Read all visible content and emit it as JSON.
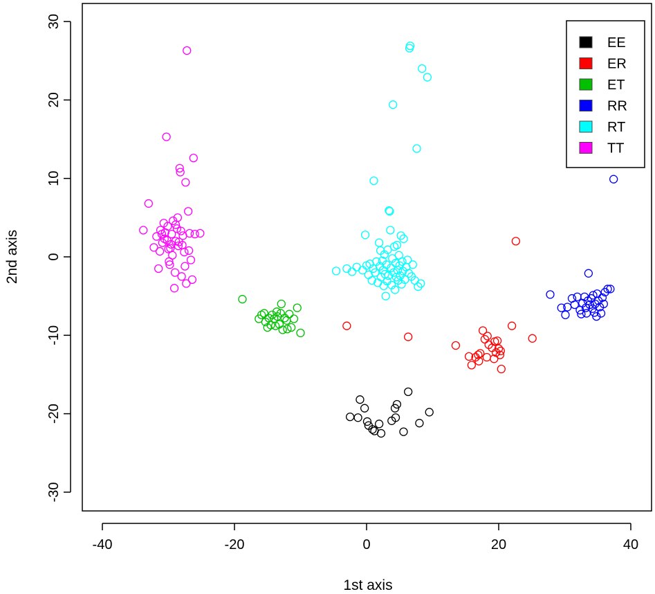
{
  "chart_data": {
    "type": "scatter",
    "xlabel": "1st axis",
    "ylabel": "2nd axis",
    "xlim": [
      -40,
      40
    ],
    "ylim": [
      -30,
      30
    ],
    "x_ticks": [
      "-40",
      "-20",
      "0",
      "20",
      "40"
    ],
    "y_ticks": [
      "-30",
      "-20",
      "-10",
      "0",
      "10",
      "20",
      "30"
    ],
    "legend_position": "top-right",
    "grid": false,
    "series": [
      {
        "name": "EE",
        "color": "#000000",
        "points": [
          [
            -1.0,
            -18.2
          ],
          [
            -0.3,
            -19.3
          ],
          [
            -2.5,
            -20.4
          ],
          [
            -1.3,
            -20.5
          ],
          [
            0.1,
            -21.0
          ],
          [
            0.3,
            -21.5
          ],
          [
            0.9,
            -22.0
          ],
          [
            1.2,
            -22.2
          ],
          [
            1.9,
            -21.3
          ],
          [
            2.2,
            -22.5
          ],
          [
            3.8,
            -20.9
          ],
          [
            4.4,
            -20.5
          ],
          [
            4.3,
            -19.3
          ],
          [
            4.6,
            -18.8
          ],
          [
            5.6,
            -22.3
          ],
          [
            6.3,
            -17.2
          ],
          [
            8.0,
            -21.2
          ],
          [
            9.5,
            -19.8
          ]
        ]
      },
      {
        "name": "ER",
        "color": "#ff0000",
        "points": [
          [
            -3.0,
            -8.8
          ],
          [
            6.3,
            -10.2
          ],
          [
            13.5,
            -11.3
          ],
          [
            15.5,
            -12.7
          ],
          [
            15.9,
            -13.8
          ],
          [
            16.5,
            -12.8
          ],
          [
            16.9,
            -12.5
          ],
          [
            17.2,
            -12.3
          ],
          [
            17.0,
            -13.3
          ],
          [
            17.6,
            -9.4
          ],
          [
            17.9,
            -10.5
          ],
          [
            18.3,
            -10.1
          ],
          [
            18.5,
            -11.2
          ],
          [
            18.2,
            -12.8
          ],
          [
            19.0,
            -11.6
          ],
          [
            19.4,
            -10.8
          ],
          [
            19.8,
            -10.7
          ],
          [
            19.3,
            -13.0
          ],
          [
            19.6,
            -12.2
          ],
          [
            20.0,
            -11.7
          ],
          [
            20.3,
            -12.0
          ],
          [
            20.2,
            -12.5
          ],
          [
            20.4,
            -14.3
          ],
          [
            22.0,
            -8.8
          ],
          [
            22.6,
            2.0
          ],
          [
            25.1,
            -10.4
          ]
        ]
      },
      {
        "name": "ET",
        "color": "#00c000",
        "points": [
          [
            -18.8,
            -5.4
          ],
          [
            -16.3,
            -7.9
          ],
          [
            -15.9,
            -7.4
          ],
          [
            -15.5,
            -7.2
          ],
          [
            -15.3,
            -8.3
          ],
          [
            -15.0,
            -9.0
          ],
          [
            -14.8,
            -7.8
          ],
          [
            -14.5,
            -8.7
          ],
          [
            -14.3,
            -7.4
          ],
          [
            -14.0,
            -7.9
          ],
          [
            -13.8,
            -8.8
          ],
          [
            -13.6,
            -7.0
          ],
          [
            -13.5,
            -7.6
          ],
          [
            -13.2,
            -8.6
          ],
          [
            -13.0,
            -7.2
          ],
          [
            -12.9,
            -6.0
          ],
          [
            -12.7,
            -9.3
          ],
          [
            -12.4,
            -7.8
          ],
          [
            -12.1,
            -8.1
          ],
          [
            -12.0,
            -9.2
          ],
          [
            -11.7,
            -7.3
          ],
          [
            -11.4,
            -9.0
          ],
          [
            -11.0,
            -7.9
          ],
          [
            -10.5,
            -6.5
          ],
          [
            -10.0,
            -9.7
          ]
        ]
      },
      {
        "name": "RR",
        "color": "#0000ff",
        "points": [
          [
            27.8,
            -4.8
          ],
          [
            29.5,
            -6.5
          ],
          [
            30.1,
            -7.4
          ],
          [
            30.4,
            -6.4
          ],
          [
            31.1,
            -5.3
          ],
          [
            31.5,
            -6.1
          ],
          [
            31.9,
            -5.1
          ],
          [
            32.3,
            -6.8
          ],
          [
            32.5,
            -7.3
          ],
          [
            32.7,
            -5.9
          ],
          [
            33.0,
            -5.1
          ],
          [
            33.2,
            -6.5
          ],
          [
            33.3,
            -7.2
          ],
          [
            33.5,
            -5.6
          ],
          [
            33.6,
            -2.1
          ],
          [
            33.8,
            -6.1
          ],
          [
            34.0,
            -5.3
          ],
          [
            34.2,
            -6.6
          ],
          [
            34.3,
            -4.9
          ],
          [
            34.5,
            -7.1
          ],
          [
            34.6,
            -6.0
          ],
          [
            34.8,
            -7.6
          ],
          [
            34.9,
            -4.7
          ],
          [
            35.1,
            -5.6
          ],
          [
            35.3,
            -6.4
          ],
          [
            35.5,
            -7.2
          ],
          [
            35.7,
            -5.2
          ],
          [
            35.9,
            -6.0
          ],
          [
            36.1,
            -4.5
          ],
          [
            36.5,
            -4.1
          ],
          [
            36.9,
            -4.1
          ],
          [
            37.4,
            9.9
          ]
        ]
      },
      {
        "name": "RT",
        "color": "#00ffff",
        "points": [
          [
            -4.6,
            -1.8
          ],
          [
            -3.0,
            -1.5
          ],
          [
            -2.2,
            -1.9
          ],
          [
            -1.5,
            -1.3
          ],
          [
            -0.6,
            -1.7
          ],
          [
            -0.2,
            2.8
          ],
          [
            0.0,
            -1.1
          ],
          [
            0.3,
            -2.3
          ],
          [
            0.5,
            -0.9
          ],
          [
            0.8,
            -3.0
          ],
          [
            1.0,
            -1.5
          ],
          [
            1.1,
            9.7
          ],
          [
            1.3,
            -2.0
          ],
          [
            1.5,
            -0.6
          ],
          [
            1.7,
            -3.3
          ],
          [
            1.9,
            1.8
          ],
          [
            2.0,
            -1.2
          ],
          [
            2.1,
            0.8
          ],
          [
            2.2,
            -2.6
          ],
          [
            2.4,
            -0.5
          ],
          [
            2.5,
            -1.7
          ],
          [
            2.6,
            -3.7
          ],
          [
            2.7,
            0.3
          ],
          [
            2.8,
            -2.2
          ],
          [
            2.9,
            -5.0
          ],
          [
            3.0,
            -1.0
          ],
          [
            3.1,
            -3.1
          ],
          [
            3.2,
            0.9
          ],
          [
            3.3,
            -2.4
          ],
          [
            3.4,
            5.9
          ],
          [
            3.5,
            5.8
          ],
          [
            3.6,
            3.4
          ],
          [
            3.7,
            -1.4
          ],
          [
            3.8,
            -3.6
          ],
          [
            3.9,
            -0.2
          ],
          [
            4.0,
            19.4
          ],
          [
            4.1,
            -2.0
          ],
          [
            4.2,
            1.3
          ],
          [
            4.3,
            -4.2
          ],
          [
            4.4,
            -0.8
          ],
          [
            4.5,
            -2.6
          ],
          [
            4.6,
            1.5
          ],
          [
            4.7,
            -1.7
          ],
          [
            4.8,
            -3.0
          ],
          [
            4.9,
            0.2
          ],
          [
            5.0,
            -1.1
          ],
          [
            5.1,
            -2.4
          ],
          [
            5.2,
            2.7
          ],
          [
            5.3,
            -3.5
          ],
          [
            5.4,
            -0.6
          ],
          [
            5.5,
            -1.8
          ],
          [
            5.6,
            2.3
          ],
          [
            5.8,
            -2.9
          ],
          [
            6.0,
            -1.3
          ],
          [
            6.2,
            -0.4
          ],
          [
            6.4,
            -2.1
          ],
          [
            6.5,
            26.6
          ],
          [
            6.6,
            26.9
          ],
          [
            6.8,
            -2.5
          ],
          [
            7.0,
            -1.0
          ],
          [
            7.3,
            -3.0
          ],
          [
            7.6,
            13.8
          ],
          [
            7.8,
            -3.8
          ],
          [
            8.2,
            -3.4
          ],
          [
            8.4,
            24.0
          ],
          [
            9.2,
            22.9
          ]
        ]
      },
      {
        "name": "TT",
        "color": "#ff00ff",
        "points": [
          [
            -33.8,
            3.4
          ],
          [
            -33.0,
            6.8
          ],
          [
            -32.2,
            1.2
          ],
          [
            -31.8,
            2.6
          ],
          [
            -31.5,
            -1.5
          ],
          [
            -31.2,
            3.4
          ],
          [
            -30.9,
            1.8
          ],
          [
            -30.6,
            2.3
          ],
          [
            -30.3,
            15.3
          ],
          [
            -30.1,
            3.9
          ],
          [
            -29.9,
            -0.6
          ],
          [
            -29.7,
            1.1
          ],
          [
            -29.5,
            2.9
          ],
          [
            -29.3,
            4.6
          ],
          [
            -29.1,
            -4.0
          ],
          [
            -28.9,
            2.0
          ],
          [
            -28.7,
            3.6
          ],
          [
            -28.5,
            1.4
          ],
          [
            -28.3,
            11.3
          ],
          [
            -28.2,
            10.8
          ],
          [
            -28.0,
            -2.5
          ],
          [
            -27.8,
            2.7
          ],
          [
            -27.6,
            0.6
          ],
          [
            -27.4,
            9.5
          ],
          [
            -27.3,
            -3.4
          ],
          [
            -27.2,
            26.3
          ],
          [
            -27.0,
            5.8
          ],
          [
            -26.8,
            3.0
          ],
          [
            -26.6,
            -0.4
          ],
          [
            -26.4,
            -2.9
          ],
          [
            -26.2,
            12.6
          ],
          [
            -30.5,
            3.1
          ],
          [
            -29.4,
            0.2
          ],
          [
            -28.9,
            4.1
          ],
          [
            -28.6,
            5.0
          ],
          [
            -29.8,
            -1.0
          ],
          [
            -30.2,
            2.1
          ],
          [
            -31.3,
            0.7
          ],
          [
            -28.4,
            1.9
          ],
          [
            -27.9,
            1.5
          ],
          [
            -26.9,
            0.8
          ],
          [
            -26.0,
            2.9
          ],
          [
            -25.2,
            3.0
          ],
          [
            -29.0,
            -2.0
          ],
          [
            -27.5,
            -1.2
          ],
          [
            -30.7,
            4.3
          ],
          [
            -29.6,
            1.6
          ],
          [
            -28.1,
            3.3
          ],
          [
            -30.0,
            1.0
          ],
          [
            -31.0,
            2.9
          ]
        ]
      }
    ]
  }
}
